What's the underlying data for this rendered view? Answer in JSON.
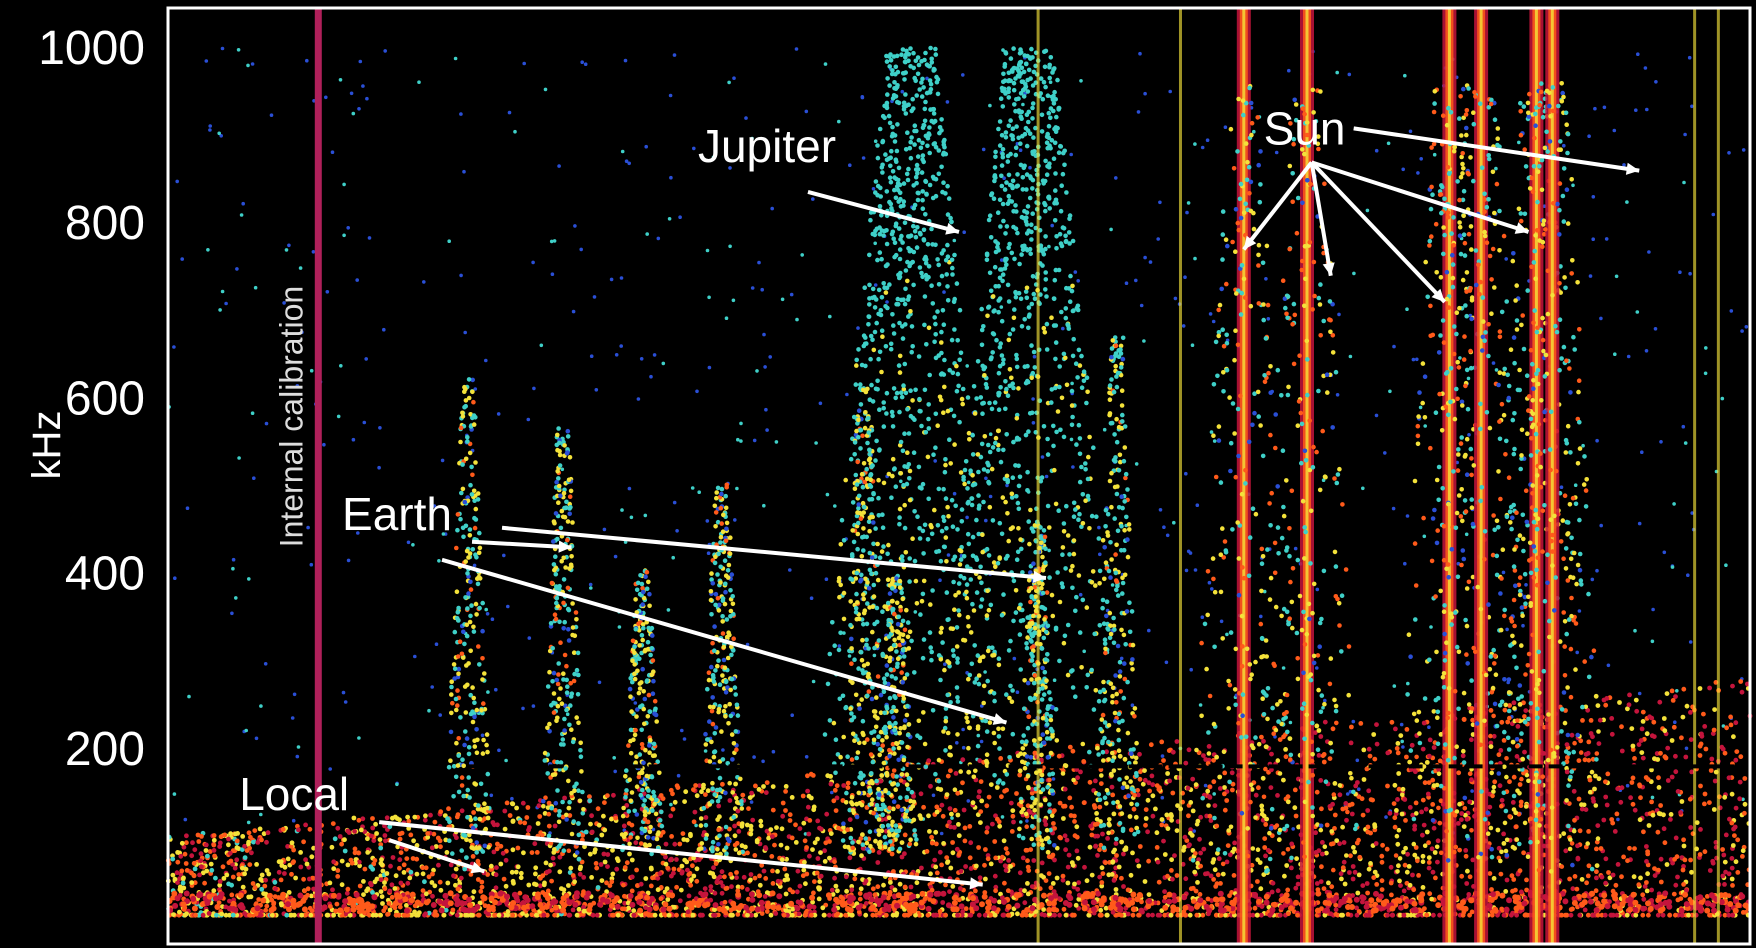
{
  "chart_data": {
    "type": "heatmap",
    "title": "",
    "xlabel": "",
    "ylabel": "kHz",
    "ylim": [
      0,
      1000
    ],
    "yticks": [
      200,
      400,
      600,
      800,
      1000
    ],
    "grid": false,
    "colors": {
      "background": "#000000",
      "low": "#2a4fd6",
      "mid": "#3fd0c8",
      "high": "#f4e23a",
      "peak": "#ff5a1a",
      "max": "#c4143c",
      "calibration": "#b0205a",
      "frame": "#ffffff",
      "arrow": "#ffffff"
    },
    "annotations": [
      {
        "label": "Internal calibration",
        "targets": []
      },
      {
        "label": "Jupiter",
        "targets": [
          [
            0.5,
            790
          ]
        ]
      },
      {
        "label": "Sun",
        "targets": [
          [
            0.68,
            770
          ],
          [
            0.735,
            740
          ],
          [
            0.807,
            710
          ],
          [
            0.86,
            790
          ],
          [
            0.93,
            860
          ]
        ]
      },
      {
        "label": "Earth",
        "targets": [
          [
            0.255,
            430
          ],
          [
            0.555,
            395
          ],
          [
            0.53,
            230
          ]
        ]
      },
      {
        "label": "Local",
        "targets": [
          [
            0.2,
            60
          ],
          [
            0.515,
            45
          ]
        ]
      }
    ],
    "emissions": {
      "background_band": {
        "freq": [
          0,
          200
        ],
        "level": 0.7
      },
      "solar_bursts_x": [
        0.68,
        0.72,
        0.81,
        0.83,
        0.865,
        0.875
      ],
      "earth_akr_x": [
        0.19,
        0.25,
        0.3,
        0.35,
        0.44,
        0.46,
        0.55,
        0.6
      ],
      "jupiter_x": [
        0.47,
        0.545
      ],
      "calibration_x": 0.095
    }
  }
}
